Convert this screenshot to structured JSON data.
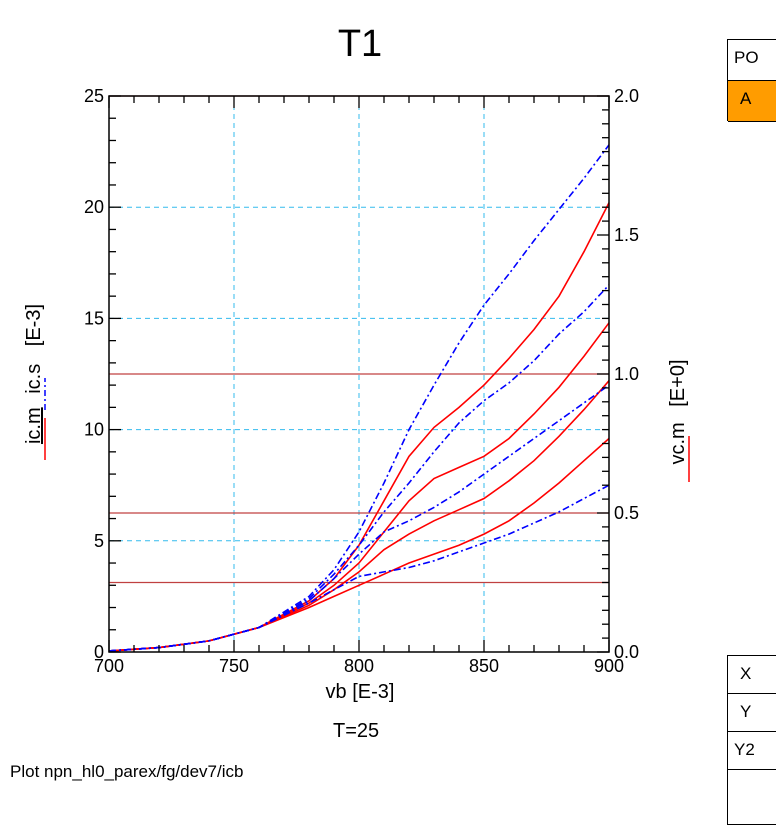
{
  "chart_data": {
    "type": "line",
    "title": "T1",
    "xlabel": "vb  [E-3]",
    "ylabel_left_parts": [
      "ic.m",
      "ic.s",
      "[E-3]"
    ],
    "ylabel_right_parts": [
      "vc.m",
      "[E+0]"
    ],
    "xlim": [
      700,
      900
    ],
    "ylim_left": [
      0,
      25
    ],
    "ylim_right": [
      0.0,
      2.0
    ],
    "x_ticks": [
      "700",
      "750",
      "800",
      "850",
      "900"
    ],
    "y_left_ticks": [
      "0",
      "5",
      "10",
      "15",
      "20",
      "25"
    ],
    "y_right_ticks": [
      "0.0",
      "0.5",
      "1.0",
      "1.5",
      "2.0"
    ],
    "grid": true,
    "colors": {
      "measured": "#ff0000",
      "simulated": "#0000ff",
      "grid": "#33bbee",
      "hline": "#c04040"
    },
    "vc_levels": [
      0.25,
      0.5,
      1.0,
      2.0
    ],
    "series": [
      {
        "kind": "measured",
        "x": [
          700,
          720,
          740,
          760,
          780,
          790,
          800,
          810,
          820,
          830,
          840,
          850,
          860,
          870,
          880,
          890,
          900
        ],
        "y": [
          0.05,
          0.2,
          0.5,
          1.1,
          2.0,
          2.5,
          3.0,
          3.5,
          4.0,
          4.4,
          4.8,
          5.3,
          5.9,
          6.7,
          7.6,
          8.6,
          9.6
        ]
      },
      {
        "kind": "measured",
        "x": [
          700,
          720,
          740,
          760,
          780,
          790,
          800,
          810,
          820,
          830,
          840,
          850,
          860,
          870,
          880,
          890,
          900
        ],
        "y": [
          0.05,
          0.2,
          0.5,
          1.1,
          2.1,
          2.8,
          3.6,
          4.6,
          5.3,
          5.9,
          6.4,
          6.9,
          7.7,
          8.6,
          9.7,
          10.9,
          12.2
        ]
      },
      {
        "kind": "measured",
        "x": [
          700,
          720,
          740,
          760,
          780,
          790,
          800,
          810,
          820,
          830,
          840,
          850,
          860,
          870,
          880,
          890,
          900
        ],
        "y": [
          0.05,
          0.2,
          0.5,
          1.1,
          2.2,
          3.0,
          4.0,
          5.4,
          6.8,
          7.8,
          8.3,
          8.8,
          9.6,
          10.7,
          11.9,
          13.3,
          14.8
        ]
      },
      {
        "kind": "measured",
        "x": [
          700,
          720,
          740,
          760,
          780,
          790,
          800,
          810,
          820,
          830,
          840,
          850,
          860,
          870,
          880,
          890,
          900
        ],
        "y": [
          0.05,
          0.2,
          0.5,
          1.1,
          2.3,
          3.3,
          4.8,
          6.8,
          8.8,
          10.1,
          11.0,
          12.0,
          13.2,
          14.5,
          16.0,
          18.0,
          20.2
        ]
      },
      {
        "kind": "simulated",
        "x": [
          700,
          720,
          740,
          760,
          780,
          790,
          800,
          810,
          820,
          830,
          840,
          850,
          860,
          870,
          880,
          890,
          900
        ],
        "y": [
          0.05,
          0.2,
          0.5,
          1.1,
          2.2,
          2.8,
          3.4,
          3.6,
          3.8,
          4.1,
          4.5,
          4.9,
          5.3,
          5.8,
          6.3,
          6.9,
          7.5
        ]
      },
      {
        "kind": "simulated",
        "x": [
          700,
          720,
          740,
          760,
          780,
          790,
          800,
          810,
          820,
          830,
          840,
          850,
          860,
          870,
          880,
          890,
          900
        ],
        "y": [
          0.05,
          0.2,
          0.5,
          1.1,
          2.3,
          3.3,
          4.4,
          5.4,
          5.9,
          6.5,
          7.2,
          8.0,
          8.8,
          9.6,
          10.4,
          11.2,
          12.0
        ]
      },
      {
        "kind": "simulated",
        "x": [
          700,
          720,
          740,
          760,
          780,
          790,
          800,
          810,
          820,
          830,
          840,
          850,
          860,
          870,
          880,
          890,
          900
        ],
        "y": [
          0.05,
          0.2,
          0.5,
          1.1,
          2.4,
          3.5,
          4.8,
          6.3,
          7.6,
          9.0,
          10.3,
          11.3,
          12.1,
          13.1,
          14.3,
          15.3,
          16.5
        ]
      },
      {
        "kind": "simulated",
        "x": [
          700,
          720,
          740,
          760,
          780,
          790,
          800,
          810,
          820,
          830,
          840,
          850,
          860,
          870,
          880,
          890,
          900
        ],
        "y": [
          0.05,
          0.2,
          0.5,
          1.1,
          2.5,
          3.7,
          5.4,
          7.6,
          10.0,
          12.0,
          13.9,
          15.6,
          17.0,
          18.5,
          19.9,
          21.3,
          22.8
        ]
      }
    ]
  },
  "footer": {
    "temperature": "T=25",
    "plot_path": "Plot npn_hl0_parex/fg/dev7/icb"
  },
  "right_panel": {
    "top_items": [
      "PO",
      "A"
    ],
    "bottom_items": [
      "X",
      "Y",
      "Y2"
    ]
  }
}
